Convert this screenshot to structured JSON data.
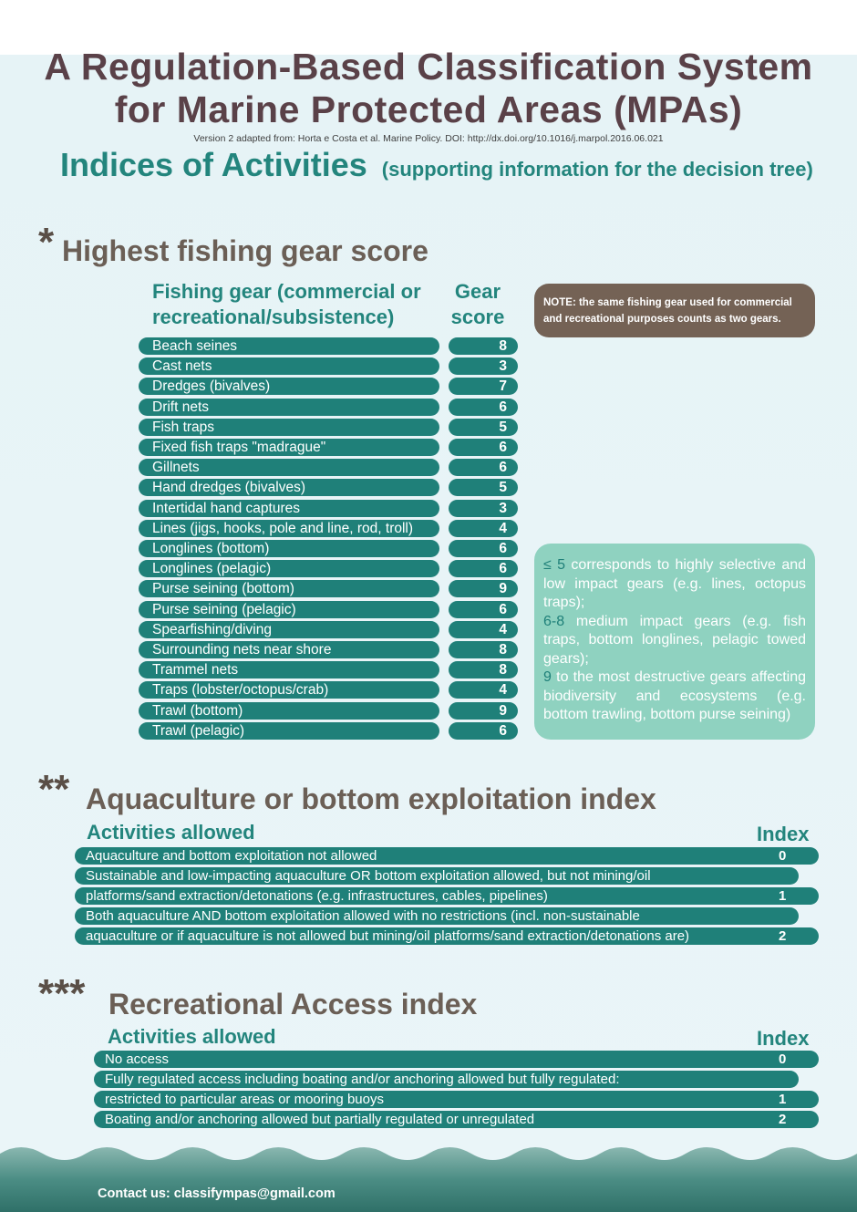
{
  "header": {
    "title_line1": "A Regulation-Based Classification System",
    "title_line2": "for Marine Protected Areas (MPAs)",
    "version": "Version 2 adapted from: Horta e Costa et al. Marine Policy. DOI: http://dx.doi.org/10.1016/j.marpol.2016.06.021",
    "indices_title": "Indices of Activities",
    "indices_subtitle": "(supporting information for the decision tree)"
  },
  "fishing": {
    "stars": "*",
    "title": "Highest fishing gear score",
    "col_gear_line1": "Fishing gear (commercial or",
    "col_gear_line2": "recreational/subsistence)",
    "col_score_line1": "Gear",
    "col_score_line2": "score",
    "note": "NOTE: the same fishing gear used for commercial and recreational purposes counts as two gears.",
    "gears": [
      {
        "name": "Beach seines",
        "score": "8"
      },
      {
        "name": "Cast nets",
        "score": "3"
      },
      {
        "name": "Dredges (bivalves)",
        "score": "7"
      },
      {
        "name": "Drift nets",
        "score": "6"
      },
      {
        "name": "Fish traps",
        "score": "5"
      },
      {
        "name": "Fixed fish traps \"madrague\"",
        "score": "6"
      },
      {
        "name": "Gillnets",
        "score": "6"
      },
      {
        "name": "Hand dredges (bivalves)",
        "score": "5"
      },
      {
        "name": "Intertidal hand captures",
        "score": "3"
      },
      {
        "name": "Lines (jigs, hooks, pole and line, rod, troll)",
        "score": "4"
      },
      {
        "name": "Longlines (bottom)",
        "score": "6"
      },
      {
        "name": "Longlines (pelagic)",
        "score": "6"
      },
      {
        "name": "Purse seining (bottom)",
        "score": "9"
      },
      {
        "name": "Purse seining (pelagic)",
        "score": "6"
      },
      {
        "name": "Spearfishing/diving",
        "score": "4"
      },
      {
        "name": "Surrounding nets near shore",
        "score": "8"
      },
      {
        "name": "Trammel nets",
        "score": "8"
      },
      {
        "name": "Traps (lobster/octopus/crab)",
        "score": "4"
      },
      {
        "name": "Trawl (bottom)",
        "score": "9"
      },
      {
        "name": "Trawl (pelagic)",
        "score": "6"
      }
    ],
    "legend": {
      "low_key": "≤ 5",
      "low_text": "corresponds to highly selective and low impact gears (e.g. lines, octopus traps);",
      "mid_key": "6-8",
      "mid_text": "medium impact gears (e.g. fish traps, bottom longlines, pelagic towed gears);",
      "high_key": "9",
      "high_text": "to the most destructive gears affecting biodiversity and ecosystems (e.g. bottom trawling, bottom purse seining)"
    }
  },
  "aquaculture": {
    "stars": "**",
    "title": "Aquaculture or bottom exploitation index",
    "col_activities": "Activities allowed",
    "col_index": "Index",
    "rows": [
      {
        "line1": "Aquaculture and bottom exploitation not allowed",
        "line2": "",
        "index": "0"
      },
      {
        "line1": "Sustainable and low-impacting aquaculture OR bottom exploitation allowed, but not mining/oil",
        "line2": "platforms/sand extraction/detonations (e.g. infrastructures, cables, pipelines)",
        "index": "1"
      },
      {
        "line1": "Both aquaculture AND bottom exploitation allowed with no restrictions (incl. non-sustainable",
        "line2": "aquaculture or if aquaculture is not allowed but mining/oil platforms/sand extraction/detonations are)",
        "index": "2"
      }
    ]
  },
  "recreational": {
    "stars": "***",
    "title": "Recreational Access index",
    "col_activities": "Activities allowed",
    "col_index": "Index",
    "rows": [
      {
        "line1": "No access",
        "line2": "",
        "index": "0"
      },
      {
        "line1": "Fully regulated access including boating and/or anchoring allowed but fully regulated:",
        "line2": "restricted to particular areas or mooring buoys",
        "index": "1"
      },
      {
        "line1": "Boating and/or anchoring allowed but partially regulated or unregulated",
        "line2": "",
        "index": "2"
      }
    ]
  },
  "footer": {
    "contact": "Contact us: classifympas@gmail.com"
  },
  "colors": {
    "teal_bar": "#1f8079",
    "teal_text": "#23857d",
    "note_brown": "#746255",
    "legend_green": "#8fd2c0",
    "title_plum": "#5a4148"
  }
}
